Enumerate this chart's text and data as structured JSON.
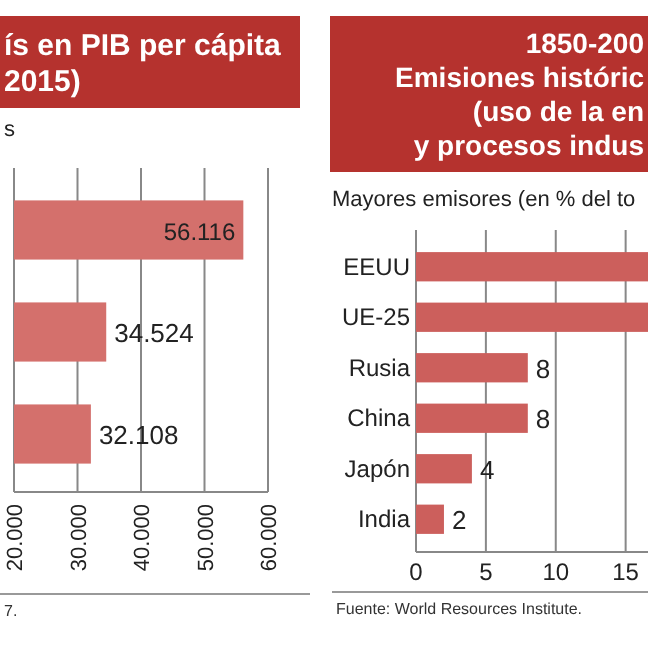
{
  "chart_data": [
    {
      "type": "bar",
      "orientation": "horizontal",
      "title": "ís en PIB per cápita\n2015)",
      "subtitle": "s",
      "categories": [
        null,
        null,
        null
      ],
      "values": [
        56116,
        34524,
        32108
      ],
      "value_labels": [
        "56.116",
        "34.524",
        "32.108"
      ],
      "color": "#d4706c",
      "xlim": [
        20000,
        60000
      ],
      "xticks": [
        {
          "value": 20000,
          "label": "20.000"
        },
        {
          "value": 30000,
          "label": "30.000"
        },
        {
          "value": 40000,
          "label": "40.000"
        },
        {
          "value": 50000,
          "label": "50.000"
        },
        {
          "value": 60000,
          "label": "60.000"
        }
      ],
      "grid": "x",
      "annotations": [
        "7."
      ]
    },
    {
      "type": "bar",
      "orientation": "horizontal",
      "title": "1850-200\nEmisiones históric\n(uso de la en\ny procesos indus",
      "subtitle": "Mayores emisores (en % del to",
      "categories": [
        "EEUU",
        "UE-25",
        "Rusia",
        "China",
        "Japón",
        "India"
      ],
      "values": [
        16.6,
        16.6,
        8,
        8,
        4,
        2
      ],
      "value_labels": [
        null,
        null,
        "8",
        "8",
        "4",
        "2"
      ],
      "color": "#cc5f5c",
      "xlim": [
        0,
        16.6
      ],
      "xticks": [
        0,
        5,
        10,
        15
      ],
      "grid": "x",
      "annotations": [
        "Fuente: World Resources Institute."
      ]
    }
  ]
}
